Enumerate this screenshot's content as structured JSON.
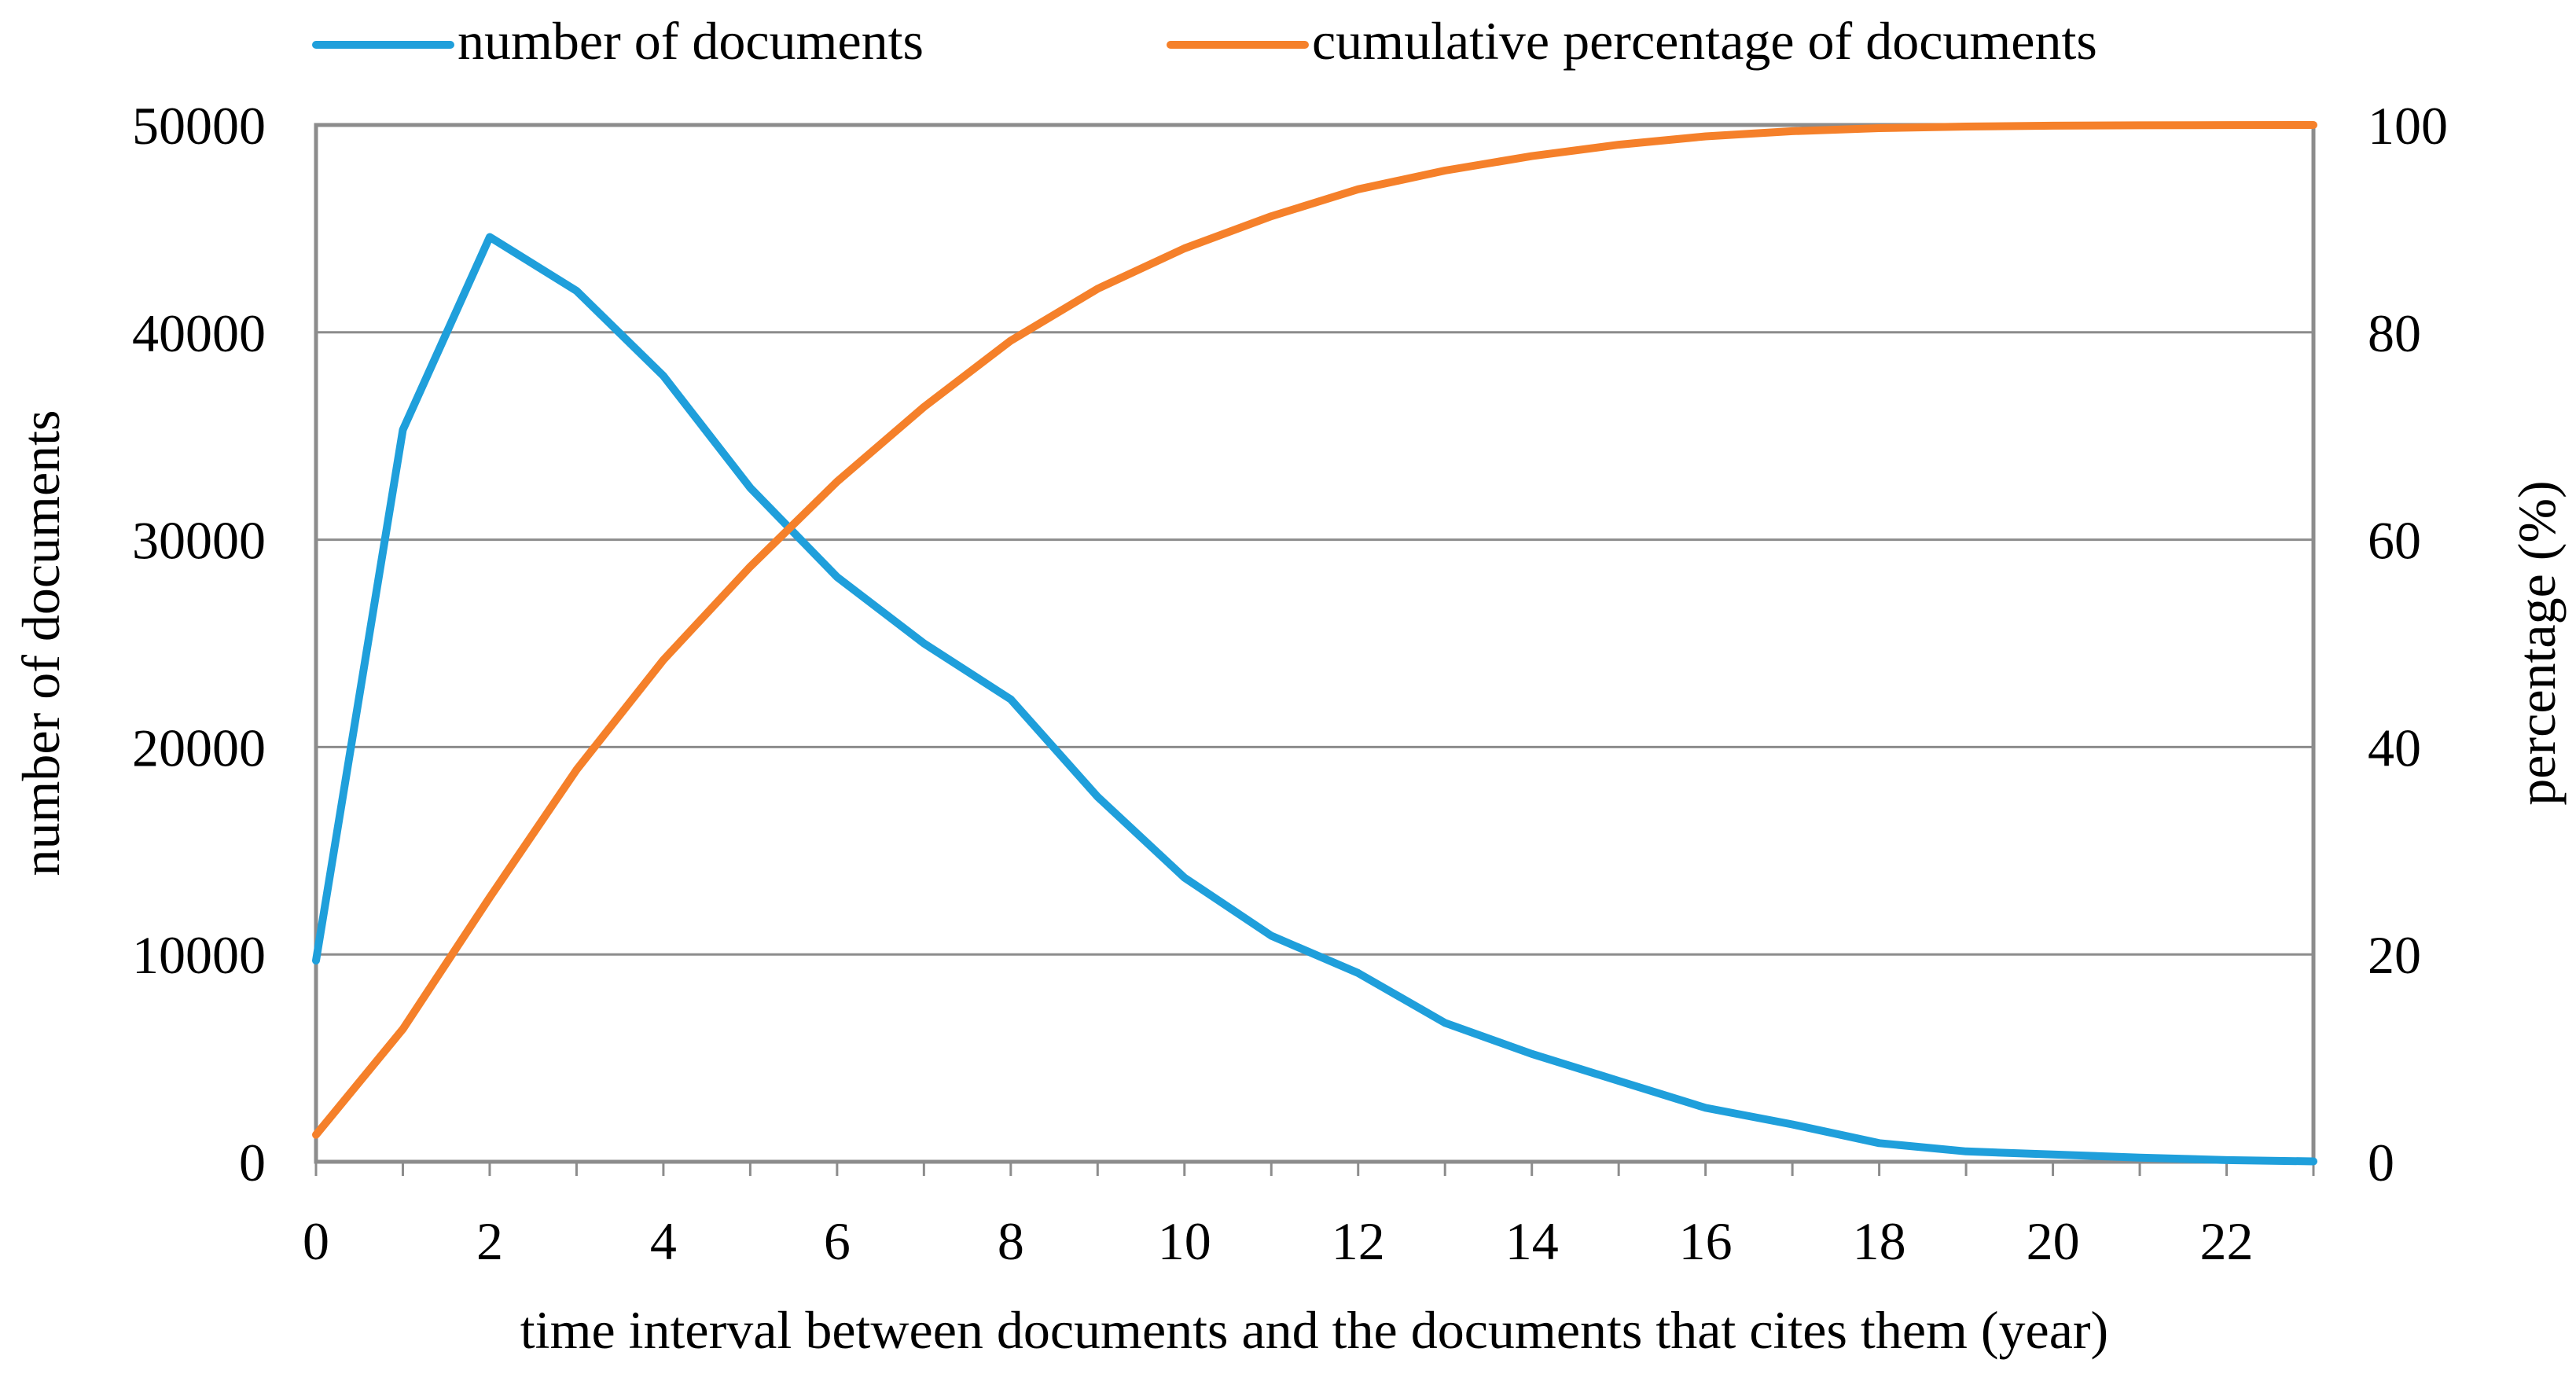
{
  "chart_data": {
    "type": "line",
    "title": "",
    "xlabel": "time interval between documents and the documents that cites them (year)",
    "ylabel_left": "number of documents",
    "ylabel_right": "percentage (%)",
    "xlim": [
      0,
      23
    ],
    "ylim_left": [
      0,
      50000
    ],
    "ylim_right": [
      0,
      100
    ],
    "x_ticks": [
      "0",
      "2",
      "4",
      "6",
      "8",
      "10",
      "12",
      "14",
      "16",
      "18",
      "20",
      "22"
    ],
    "y_ticks_left": [
      "0",
      "10000",
      "20000",
      "30000",
      "40000",
      "50000"
    ],
    "y_ticks_right": [
      "0",
      "20",
      "40",
      "60",
      "80",
      "100"
    ],
    "grid": "horizontal",
    "legend": "top",
    "x": [
      0,
      1,
      2,
      3,
      4,
      5,
      6,
      7,
      8,
      9,
      10,
      11,
      12,
      13,
      14,
      15,
      16,
      17,
      18,
      19,
      20,
      21,
      22,
      23
    ],
    "series": [
      {
        "name": "number of documents",
        "axis": "left",
        "color": "#1f9fdb",
        "values": [
          9700,
          35300,
          44600,
          42000,
          37900,
          32500,
          28200,
          25000,
          22300,
          17600,
          13700,
          10900,
          9100,
          6700,
          5200,
          3900,
          2600,
          1800,
          900,
          500,
          350,
          200,
          80,
          20
        ]
      },
      {
        "name": "cumulative percentage of documents",
        "axis": "right",
        "color": "#f5802a",
        "values": [
          2.6,
          12.8,
          25.5,
          37.8,
          48.4,
          57.4,
          65.6,
          72.8,
          79.2,
          84.2,
          88.1,
          91.2,
          93.8,
          95.6,
          97.0,
          98.1,
          98.9,
          99.4,
          99.7,
          99.85,
          99.93,
          99.97,
          99.99,
          100.0
        ]
      }
    ]
  }
}
